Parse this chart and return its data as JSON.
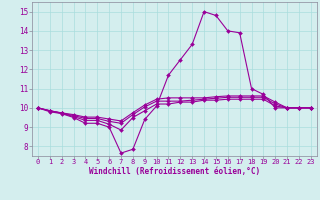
{
  "xlabel": "Windchill (Refroidissement éolien,°C)",
  "background_color": "#d4eeee",
  "line_color": "#990099",
  "grid_color": "#aadddd",
  "xlim": [
    -0.5,
    23.5
  ],
  "ylim": [
    7.5,
    15.5
  ],
  "yticks": [
    8,
    9,
    10,
    11,
    12,
    13,
    14,
    15
  ],
  "xticks": [
    0,
    1,
    2,
    3,
    4,
    5,
    6,
    7,
    8,
    9,
    10,
    11,
    12,
    13,
    14,
    15,
    16,
    17,
    18,
    19,
    20,
    21,
    22,
    23
  ],
  "series": [
    [
      10.0,
      9.8,
      9.7,
      9.5,
      9.2,
      9.2,
      9.0,
      7.65,
      7.85,
      9.4,
      10.1,
      11.7,
      12.5,
      13.3,
      15.0,
      14.8,
      14.0,
      13.9,
      11.0,
      10.7,
      10.0,
      10.0,
      10.0,
      10.0
    ],
    [
      10.0,
      9.85,
      9.72,
      9.55,
      9.35,
      9.35,
      9.15,
      8.85,
      9.5,
      9.85,
      10.2,
      10.2,
      10.3,
      10.3,
      10.4,
      10.4,
      10.45,
      10.45,
      10.45,
      10.45,
      10.1,
      10.0,
      10.0,
      10.0
    ],
    [
      10.0,
      9.85,
      9.73,
      9.6,
      9.45,
      9.45,
      9.3,
      9.2,
      9.65,
      10.05,
      10.35,
      10.35,
      10.35,
      10.4,
      10.45,
      10.5,
      10.55,
      10.55,
      10.55,
      10.55,
      10.2,
      10.0,
      10.0,
      10.0
    ],
    [
      10.0,
      9.85,
      9.74,
      9.65,
      9.52,
      9.52,
      9.42,
      9.32,
      9.75,
      10.15,
      10.45,
      10.52,
      10.52,
      10.52,
      10.52,
      10.58,
      10.62,
      10.62,
      10.62,
      10.62,
      10.3,
      10.0,
      10.0,
      10.0
    ]
  ]
}
